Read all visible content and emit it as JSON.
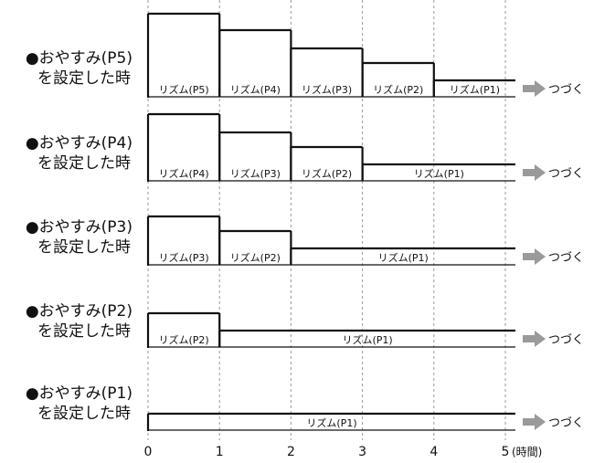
{
  "colors": {
    "outline": "#111111",
    "gridline": "#999999",
    "arrow": "#9a9a9a",
    "background": "#ffffff"
  },
  "continue_text": "つづく",
  "axis": {
    "ticks": [
      "0",
      "1",
      "2",
      "3",
      "4",
      "5"
    ],
    "unit": "(時間)",
    "range": [
      0,
      5
    ]
  },
  "rows": [
    {
      "title": "●おやすみ(P5)",
      "subtitle": "を設定した時",
      "level": 5,
      "segments": [
        {
          "start": 0,
          "end": 1,
          "level": 5,
          "label": "リズム(P5)"
        },
        {
          "start": 1,
          "end": 2,
          "level": 4,
          "label": "リズム(P4)"
        },
        {
          "start": 2,
          "end": 3,
          "level": 3,
          "label": "リズム(P3)"
        },
        {
          "start": 3,
          "end": 4,
          "level": 2,
          "label": "リズム(P2)"
        },
        {
          "start": 4,
          "end": 5,
          "level": 1,
          "label": "リズム(P1)"
        }
      ]
    },
    {
      "title": "●おやすみ(P4)",
      "subtitle": "を設定した時",
      "level": 4,
      "segments": [
        {
          "start": 0,
          "end": 1,
          "level": 4,
          "label": "リズム(P4)"
        },
        {
          "start": 1,
          "end": 2,
          "level": 3,
          "label": "リズム(P3)"
        },
        {
          "start": 2,
          "end": 3,
          "level": 2,
          "label": "リズム(P2)"
        },
        {
          "start": 3,
          "end": 5,
          "level": 1,
          "label": "リズム(P1)"
        }
      ]
    },
    {
      "title": "●おやすみ(P3)",
      "subtitle": "を設定した時",
      "level": 3,
      "segments": [
        {
          "start": 0,
          "end": 1,
          "level": 3,
          "label": "リズム(P3)"
        },
        {
          "start": 1,
          "end": 2,
          "level": 2,
          "label": "リズム(P2)"
        },
        {
          "start": 2,
          "end": 5,
          "level": 1,
          "label": "リズム(P1)"
        }
      ]
    },
    {
      "title": "●おやすみ(P2)",
      "subtitle": "を設定した時",
      "level": 2,
      "segments": [
        {
          "start": 0,
          "end": 1,
          "level": 2,
          "label": "リズム(P2)"
        },
        {
          "start": 1,
          "end": 5,
          "level": 1,
          "label": "リズム(P1)"
        }
      ]
    },
    {
      "title": "●おやすみ(P1)",
      "subtitle": "を設定した時",
      "level": 1,
      "segments": [
        {
          "start": 0,
          "end": 5,
          "level": 1,
          "label": "リズム(P1)"
        }
      ]
    }
  ]
}
